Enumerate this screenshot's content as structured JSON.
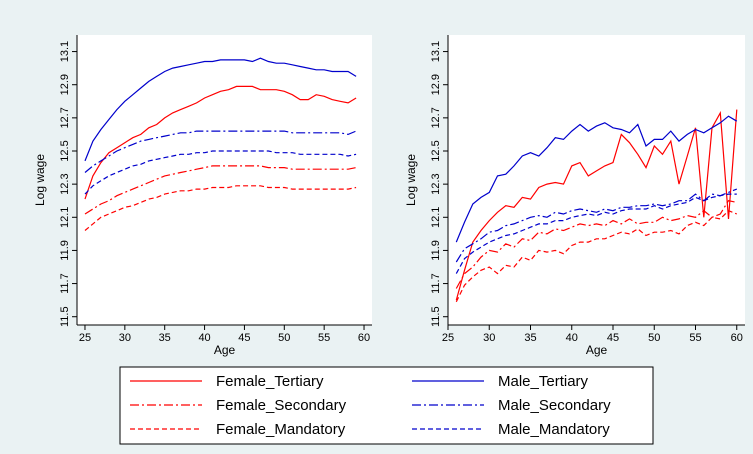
{
  "chart_data": [
    {
      "type": "line",
      "xlabel": "Age",
      "ylabel": "Log wage",
      "xlim": [
        24,
        61
      ],
      "ylim": [
        11.45,
        13.2
      ],
      "xticks": [
        25,
        30,
        35,
        40,
        45,
        50,
        55,
        60
      ],
      "yticks": [
        11.5,
        11.7,
        11.9,
        12.1,
        12.3,
        12.5,
        12.7,
        12.9,
        13.1
      ],
      "grid": false,
      "series": [
        {
          "name": "Female_Tertiary",
          "x": [
            25,
            26,
            27,
            28,
            29,
            30,
            31,
            32,
            33,
            34,
            35,
            36,
            37,
            38,
            39,
            40,
            41,
            42,
            43,
            44,
            45,
            46,
            47,
            48,
            49,
            50,
            51,
            52,
            53,
            54,
            55,
            56,
            57,
            58,
            59
          ],
          "values": [
            12.21,
            12.35,
            12.43,
            12.49,
            12.52,
            12.55,
            12.58,
            12.6,
            12.64,
            12.66,
            12.7,
            12.73,
            12.75,
            12.77,
            12.79,
            12.82,
            12.84,
            12.86,
            12.87,
            12.89,
            12.89,
            12.89,
            12.87,
            12.87,
            12.87,
            12.86,
            12.84,
            12.81,
            12.81,
            12.84,
            12.83,
            12.81,
            12.8,
            12.79,
            12.82
          ]
        },
        {
          "name": "Female_Secondary",
          "x": [
            25,
            26,
            27,
            28,
            29,
            30,
            31,
            32,
            33,
            34,
            35,
            36,
            37,
            38,
            39,
            40,
            41,
            42,
            43,
            44,
            45,
            46,
            47,
            48,
            49,
            50,
            51,
            52,
            53,
            54,
            55,
            56,
            57,
            58,
            59
          ],
          "values": [
            12.12,
            12.15,
            12.18,
            12.2,
            12.23,
            12.25,
            12.27,
            12.29,
            12.31,
            12.33,
            12.35,
            12.36,
            12.37,
            12.38,
            12.39,
            12.4,
            12.41,
            12.41,
            12.41,
            12.41,
            12.41,
            12.41,
            12.41,
            12.4,
            12.4,
            12.4,
            12.39,
            12.39,
            12.39,
            12.39,
            12.39,
            12.39,
            12.39,
            12.39,
            12.4
          ]
        },
        {
          "name": "Female_Mandatory",
          "x": [
            25,
            26,
            27,
            28,
            29,
            30,
            31,
            32,
            33,
            34,
            35,
            36,
            37,
            38,
            39,
            40,
            41,
            42,
            43,
            44,
            45,
            46,
            47,
            48,
            49,
            50,
            51,
            52,
            53,
            54,
            55,
            56,
            57,
            58,
            59
          ],
          "values": [
            12.02,
            12.06,
            12.1,
            12.12,
            12.14,
            12.16,
            12.17,
            12.19,
            12.21,
            12.22,
            12.24,
            12.25,
            12.26,
            12.26,
            12.27,
            12.27,
            12.28,
            12.28,
            12.28,
            12.29,
            12.29,
            12.29,
            12.29,
            12.28,
            12.28,
            12.28,
            12.27,
            12.27,
            12.27,
            12.27,
            12.27,
            12.27,
            12.27,
            12.27,
            12.28
          ]
        },
        {
          "name": "Male_Tertiary",
          "x": [
            25,
            26,
            27,
            28,
            29,
            30,
            31,
            32,
            33,
            34,
            35,
            36,
            37,
            38,
            39,
            40,
            41,
            42,
            43,
            44,
            45,
            46,
            47,
            48,
            49,
            50,
            51,
            52,
            53,
            54,
            55,
            56,
            57,
            58,
            59
          ],
          "values": [
            12.44,
            12.56,
            12.63,
            12.69,
            12.75,
            12.8,
            12.84,
            12.88,
            12.92,
            12.95,
            12.98,
            13.0,
            13.01,
            13.02,
            13.03,
            13.04,
            13.04,
            13.05,
            13.05,
            13.05,
            13.05,
            13.04,
            13.06,
            13.04,
            13.03,
            13.03,
            13.02,
            13.01,
            13.0,
            12.99,
            12.99,
            12.98,
            12.98,
            12.98,
            12.95
          ]
        },
        {
          "name": "Male_Secondary",
          "x": [
            25,
            26,
            27,
            28,
            29,
            30,
            31,
            32,
            33,
            34,
            35,
            36,
            37,
            38,
            39,
            40,
            41,
            42,
            43,
            44,
            45,
            46,
            47,
            48,
            49,
            50,
            51,
            52,
            53,
            54,
            55,
            56,
            57,
            58,
            59
          ],
          "values": [
            12.37,
            12.41,
            12.44,
            12.47,
            12.5,
            12.52,
            12.54,
            12.56,
            12.57,
            12.58,
            12.59,
            12.6,
            12.61,
            12.61,
            12.62,
            12.62,
            12.62,
            12.62,
            12.62,
            12.62,
            12.62,
            12.62,
            12.62,
            12.62,
            12.62,
            12.62,
            12.61,
            12.61,
            12.61,
            12.61,
            12.61,
            12.61,
            12.61,
            12.6,
            12.62
          ]
        },
        {
          "name": "Male_Mandatory",
          "x": [
            25,
            26,
            27,
            28,
            29,
            30,
            31,
            32,
            33,
            34,
            35,
            36,
            37,
            38,
            39,
            40,
            41,
            42,
            43,
            44,
            45,
            46,
            47,
            48,
            49,
            50,
            51,
            52,
            53,
            54,
            55,
            56,
            57,
            58,
            59
          ],
          "values": [
            12.24,
            12.29,
            12.32,
            12.35,
            12.37,
            12.39,
            12.41,
            12.42,
            12.44,
            12.45,
            12.46,
            12.47,
            12.48,
            12.48,
            12.49,
            12.49,
            12.5,
            12.5,
            12.5,
            12.5,
            12.5,
            12.5,
            12.5,
            12.5,
            12.49,
            12.49,
            12.49,
            12.48,
            12.48,
            12.48,
            12.48,
            12.48,
            12.48,
            12.47,
            12.48
          ]
        }
      ]
    },
    {
      "type": "line",
      "xlabel": "Age",
      "ylabel": "Log wage",
      "xlim": [
        25,
        61
      ],
      "ylim": [
        11.45,
        13.2
      ],
      "xticks": [
        25,
        30,
        35,
        40,
        45,
        50,
        55,
        60
      ],
      "yticks": [
        11.5,
        11.7,
        11.9,
        12.1,
        12.3,
        12.5,
        12.7,
        12.9,
        13.1
      ],
      "grid": false,
      "series": [
        {
          "name": "Female_Tertiary",
          "x": [
            26,
            27,
            28,
            29,
            30,
            31,
            32,
            33,
            34,
            35,
            36,
            37,
            38,
            39,
            40,
            41,
            42,
            43,
            44,
            45,
            46,
            47,
            48,
            49,
            50,
            51,
            52,
            53,
            54,
            55,
            56,
            57,
            58,
            59,
            60
          ],
          "values": [
            11.6,
            11.78,
            11.95,
            12.02,
            12.08,
            12.13,
            12.17,
            12.16,
            12.22,
            12.21,
            12.28,
            12.3,
            12.31,
            12.3,
            12.41,
            12.43,
            12.35,
            12.38,
            12.41,
            12.43,
            12.6,
            12.55,
            12.48,
            12.4,
            12.53,
            12.48,
            12.56,
            12.3,
            12.47,
            12.64,
            12.1,
            12.64,
            12.73,
            12.09,
            12.75
          ]
        },
        {
          "name": "Female_Secondary",
          "x": [
            26,
            27,
            28,
            29,
            30,
            31,
            32,
            33,
            34,
            35,
            36,
            37,
            38,
            39,
            40,
            41,
            42,
            43,
            44,
            45,
            46,
            47,
            48,
            49,
            50,
            51,
            52,
            53,
            54,
            55,
            56,
            57,
            58,
            59,
            60
          ],
          "values": [
            11.67,
            11.76,
            11.8,
            11.86,
            11.9,
            11.89,
            11.94,
            11.92,
            11.97,
            11.96,
            12.01,
            12.0,
            12.03,
            12.02,
            12.04,
            12.06,
            12.05,
            12.06,
            12.05,
            12.08,
            12.06,
            12.09,
            12.06,
            12.07,
            12.07,
            12.1,
            12.08,
            12.09,
            12.11,
            12.1,
            12.14,
            12.1,
            12.12,
            12.2,
            12.19
          ]
        },
        {
          "name": "Female_Mandatory",
          "x": [
            26,
            27,
            28,
            29,
            30,
            31,
            32,
            33,
            34,
            35,
            36,
            37,
            38,
            39,
            40,
            41,
            42,
            43,
            44,
            45,
            46,
            47,
            48,
            49,
            50,
            51,
            52,
            53,
            54,
            55,
            56,
            57,
            58,
            59,
            60
          ],
          "values": [
            11.59,
            11.69,
            11.74,
            11.78,
            11.8,
            11.76,
            11.81,
            11.8,
            11.86,
            11.84,
            11.9,
            11.89,
            11.9,
            11.88,
            11.93,
            11.95,
            11.95,
            11.97,
            11.97,
            11.99,
            12.01,
            12.0,
            12.03,
            11.99,
            12.01,
            12.01,
            12.02,
            12.0,
            12.05,
            12.07,
            12.05,
            12.1,
            12.09,
            12.14,
            12.12
          ]
        },
        {
          "name": "Male_Tertiary",
          "x": [
            26,
            27,
            28,
            29,
            30,
            31,
            32,
            33,
            34,
            35,
            36,
            37,
            38,
            39,
            40,
            41,
            42,
            43,
            44,
            45,
            46,
            47,
            48,
            49,
            50,
            51,
            52,
            53,
            54,
            55,
            56,
            57,
            58,
            59,
            60
          ],
          "values": [
            11.95,
            12.07,
            12.18,
            12.22,
            12.25,
            12.35,
            12.36,
            12.41,
            12.47,
            12.49,
            12.47,
            12.52,
            12.58,
            12.57,
            12.62,
            12.66,
            12.62,
            12.65,
            12.67,
            12.64,
            12.63,
            12.61,
            12.66,
            12.53,
            12.57,
            12.57,
            12.62,
            12.56,
            12.6,
            12.63,
            12.61,
            12.64,
            12.67,
            12.71,
            12.68
          ]
        },
        {
          "name": "Male_Secondary",
          "x": [
            26,
            27,
            28,
            29,
            30,
            31,
            32,
            33,
            34,
            35,
            36,
            37,
            38,
            39,
            40,
            41,
            42,
            43,
            44,
            45,
            46,
            47,
            48,
            49,
            50,
            51,
            52,
            53,
            54,
            55,
            56,
            57,
            58,
            59,
            60
          ],
          "values": [
            11.83,
            11.91,
            11.94,
            11.97,
            12.01,
            12.02,
            12.05,
            12.06,
            12.08,
            12.1,
            12.11,
            12.1,
            12.13,
            12.12,
            12.14,
            12.15,
            12.14,
            12.13,
            12.15,
            12.14,
            12.16,
            12.16,
            12.17,
            12.17,
            12.18,
            12.17,
            12.18,
            12.2,
            12.2,
            12.24,
            12.2,
            12.24,
            12.23,
            12.25,
            12.27
          ]
        },
        {
          "name": "Male_Mandatory",
          "x": [
            26,
            27,
            28,
            29,
            30,
            31,
            32,
            33,
            34,
            35,
            36,
            37,
            38,
            39,
            40,
            41,
            42,
            43,
            44,
            45,
            46,
            47,
            48,
            49,
            50,
            51,
            52,
            53,
            54,
            55,
            56,
            57,
            58,
            59,
            60
          ],
          "values": [
            11.76,
            11.85,
            11.89,
            11.92,
            11.95,
            11.97,
            11.99,
            12.0,
            12.02,
            12.04,
            12.06,
            12.06,
            12.08,
            12.08,
            12.1,
            12.11,
            12.12,
            12.11,
            12.13,
            12.12,
            12.14,
            12.15,
            12.15,
            12.15,
            12.17,
            12.15,
            12.17,
            12.18,
            12.19,
            12.22,
            12.2,
            12.22,
            12.23,
            12.24,
            12.24
          ]
        }
      ]
    }
  ],
  "legend": {
    "items": [
      {
        "label": "Female_Tertiary",
        "color": "#ff0000",
        "dash": "solid"
      },
      {
        "label": "Male_Tertiary",
        "color": "#0000cc",
        "dash": "solid"
      },
      {
        "label": "Female_Secondary",
        "color": "#ff0000",
        "dash": "dash-dot"
      },
      {
        "label": "Male_Secondary",
        "color": "#0000cc",
        "dash": "dash-dot"
      },
      {
        "label": "Female_Mandatory",
        "color": "#ff0000",
        "dash": "dashed"
      },
      {
        "label": "Male_Mandatory",
        "color": "#0000cc",
        "dash": "dashed"
      }
    ]
  },
  "colors": {
    "background": "#eaf2f3",
    "plot_bg": "#ffffff",
    "female": "#ff0000",
    "male": "#0000cc"
  }
}
